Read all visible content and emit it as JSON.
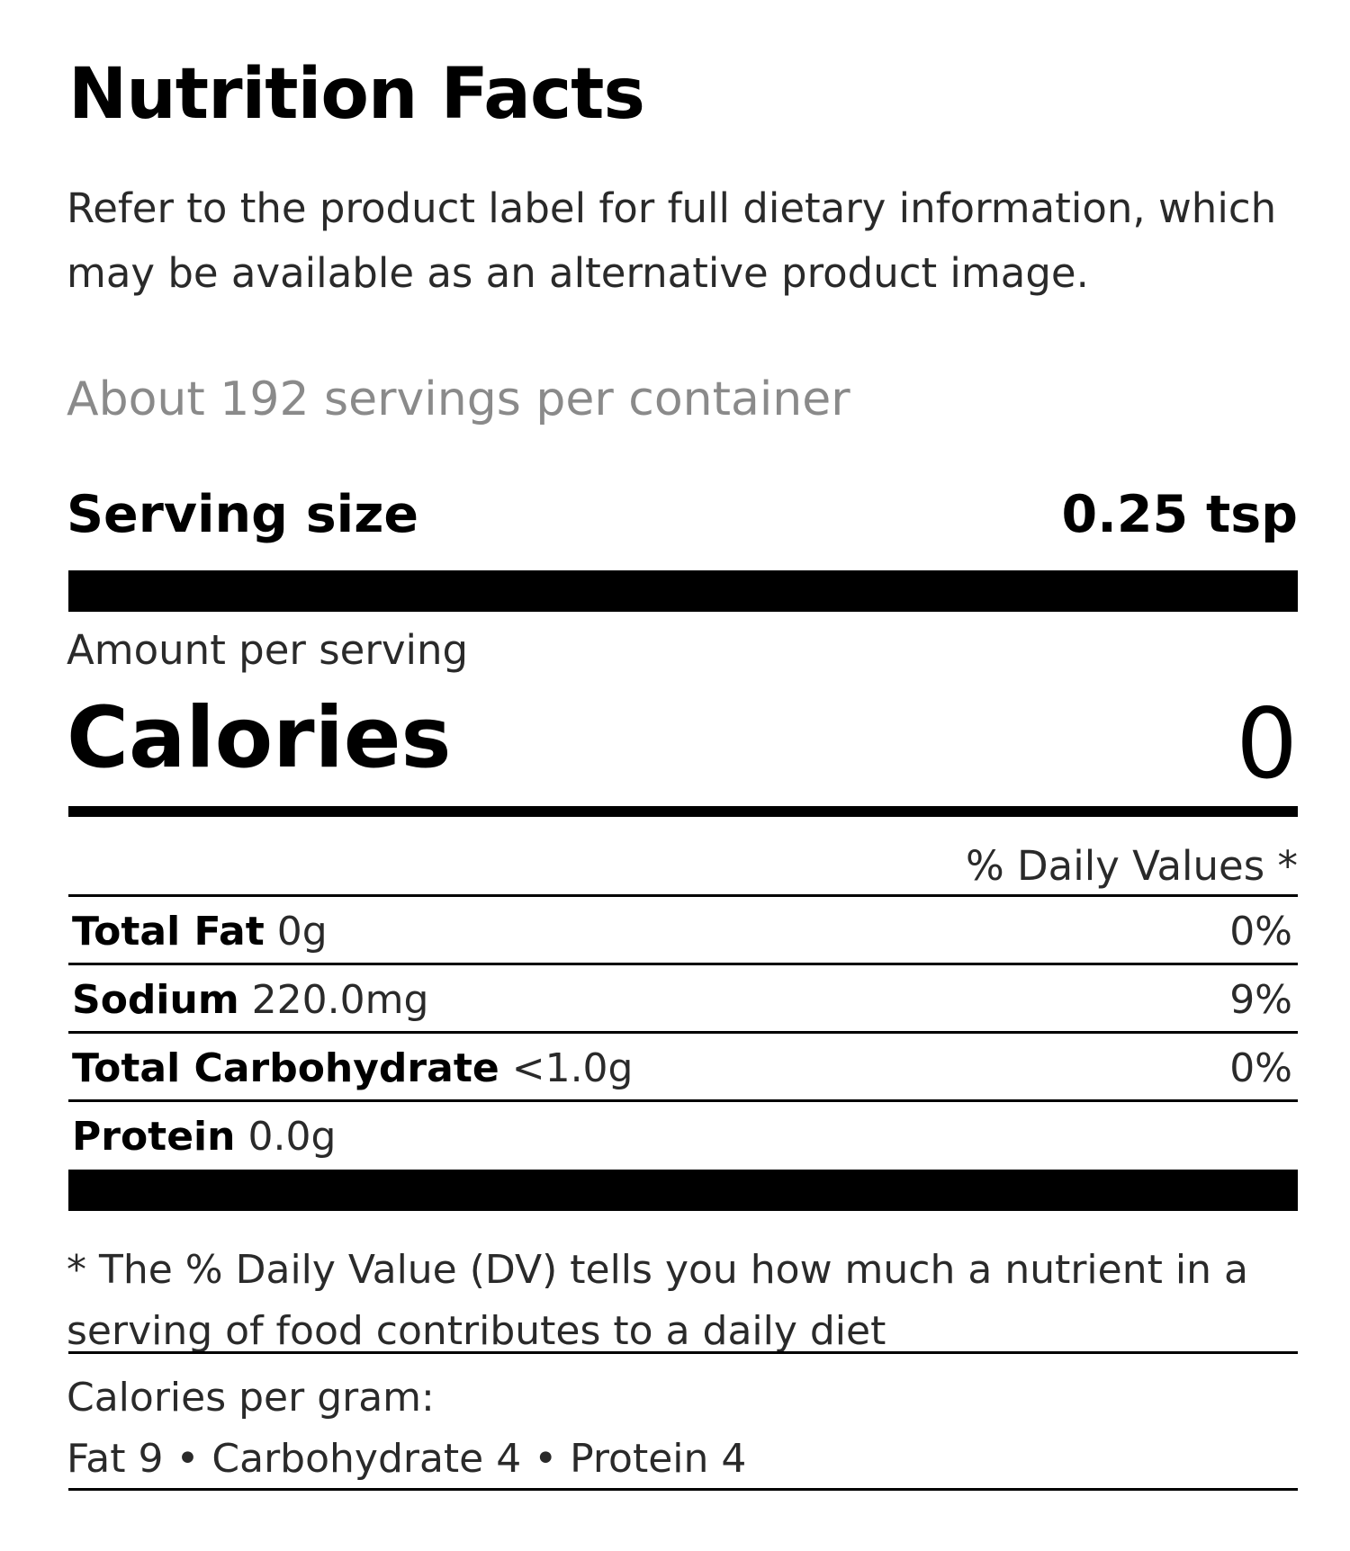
{
  "panel": {
    "title": "Nutrition Facts",
    "disclaimer": "Refer to the product label for full dietary information, which may be available as an alternative product image.",
    "servings_per_container": "About 192 servings per container",
    "serving_size_label": "Serving size",
    "serving_size_value": "0.25 tsp",
    "amount_per_serving": "Amount per serving",
    "calories_label": "Calories",
    "calories_value": "0",
    "daily_values_header": "% Daily Values *",
    "nutrients": [
      {
        "name": "Total Fat",
        "amount": "0g",
        "dv": "0%"
      },
      {
        "name": "Sodium",
        "amount": "220.0mg",
        "dv": "9%"
      },
      {
        "name": "Total Carbohydrate",
        "amount": "<1.0g",
        "dv": "0%"
      },
      {
        "name": "Protein",
        "amount": "0.0g",
        "dv": ""
      }
    ],
    "footnote": "* The % Daily Value (DV) tells you how much a nutrient in a serving of food contributes to a daily diet",
    "calories_per_gram_label": "Calories per gram:",
    "calories_per_gram_values": "Fat 9 • Carbohydrate 4 • Protein 4"
  }
}
